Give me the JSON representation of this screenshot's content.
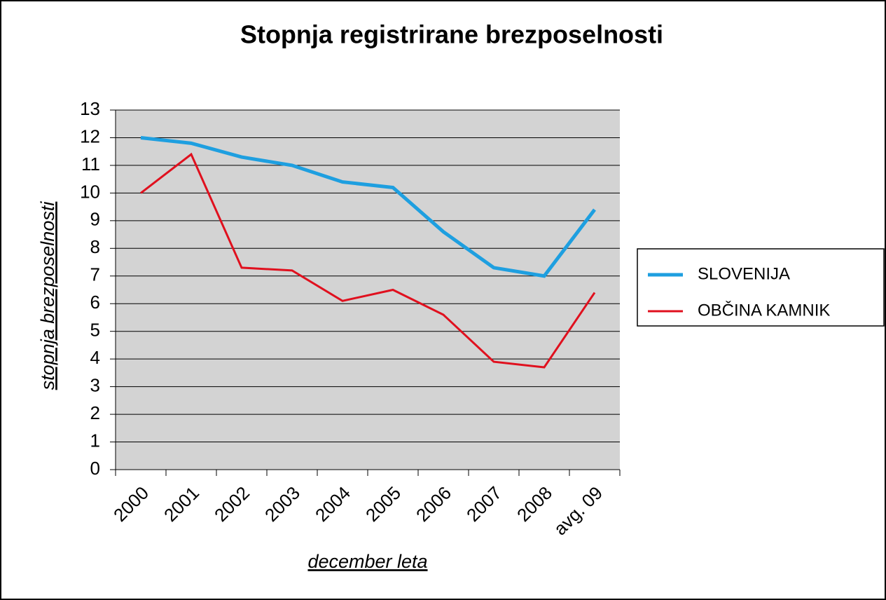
{
  "chart_data": {
    "type": "line",
    "title": "Stopnja registrirane brezposelnosti",
    "x_label": "december leta",
    "y_label": "stopnja brezposelnosti",
    "categories": [
      "2000",
      "2001",
      "2002",
      "2003",
      "2004",
      "2005",
      "2006",
      "2007",
      "2008",
      "avg. 09"
    ],
    "series": [
      {
        "name": "SLOVENIJA",
        "color": "#1e9fe0",
        "values": [
          12.0,
          11.8,
          11.3,
          11.0,
          10.4,
          10.2,
          8.6,
          7.3,
          7.0,
          9.4
        ]
      },
      {
        "name": "OBČINA KAMNIK",
        "color": "#e0101e",
        "values": [
          10.0,
          11.4,
          7.3,
          7.2,
          6.1,
          6.5,
          5.6,
          3.9,
          3.7,
          6.4
        ]
      }
    ],
    "ylim": [
      0,
      13
    ],
    "yticks": [
      0,
      1,
      2,
      3,
      4,
      5,
      6,
      7,
      8,
      9,
      10,
      11,
      12,
      13
    ],
    "grid": true,
    "legend": "right"
  }
}
